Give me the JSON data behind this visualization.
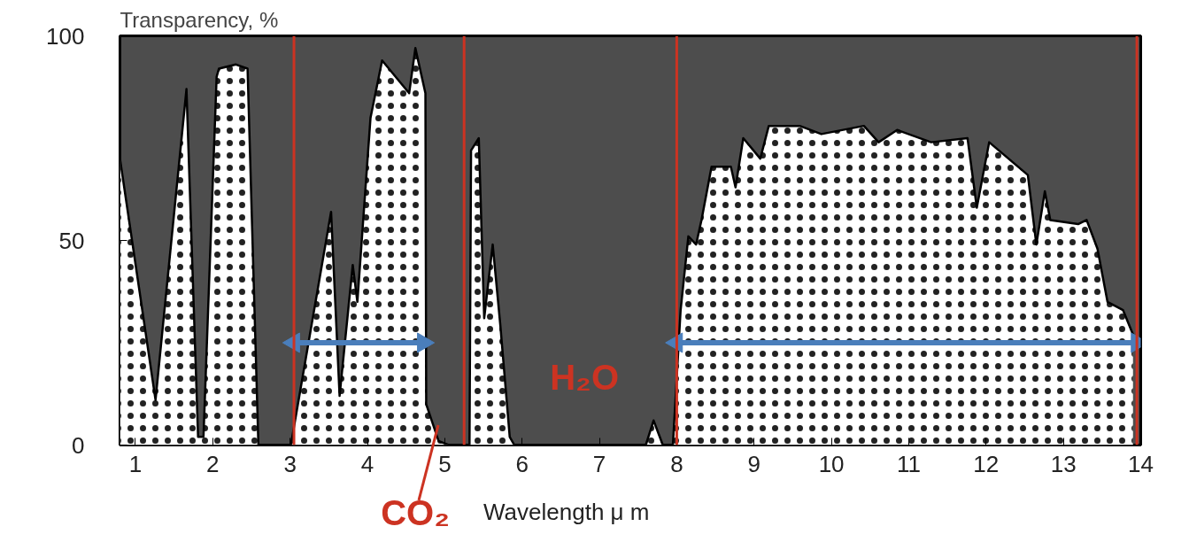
{
  "chart_data": {
    "type": "area",
    "xlabel": "Wavelength μ m",
    "ylabel": "Transparency, %",
    "xlim": [
      0.8,
      14
    ],
    "ylim": [
      0,
      100
    ],
    "xticks": [
      1,
      2,
      3,
      4,
      5,
      6,
      7,
      8,
      9,
      10,
      11,
      12,
      13,
      14
    ],
    "yticks": [
      0,
      50,
      100
    ],
    "grid": false,
    "series": [
      {
        "type": "area",
        "color": "#ffffff",
        "x": [
          0.8,
          1.26,
          1.66,
          1.81,
          1.88,
          2.05,
          2.08,
          2.3,
          2.45,
          2.59,
          3.01,
          3.53,
          3.64,
          3.81,
          3.87,
          4.04,
          4.19,
          4.54,
          4.62,
          4.75,
          4.76,
          4.92,
          5.05,
          5.32,
          5.34,
          5.44,
          5.51,
          5.62,
          5.72,
          5.84,
          5.9,
          7.6,
          7.7,
          7.82,
          7.95,
          8.05,
          8.15,
          8.25,
          8.32,
          8.45,
          8.7,
          8.76,
          8.86,
          9.08,
          9.19,
          9.59,
          9.87,
          10.42,
          10.61,
          10.85,
          11.29,
          11.76,
          11.88,
          12.04,
          12.54,
          12.65,
          12.76,
          12.83,
          13.19,
          13.3,
          13.44,
          13.57,
          13.77,
          13.9
        ],
        "values": [
          70,
          11,
          87,
          2,
          2,
          90,
          92,
          93,
          92,
          0,
          0,
          57,
          12,
          44,
          35,
          80,
          94,
          86,
          97,
          86,
          10,
          1,
          0,
          0,
          72,
          75,
          31,
          49,
          29,
          2,
          0,
          0,
          6,
          0,
          0,
          33,
          51,
          49,
          55,
          68,
          68,
          63,
          75,
          70,
          78,
          78,
          76,
          78,
          74,
          77,
          74,
          75,
          58,
          74,
          66,
          49,
          62,
          55,
          54,
          55,
          48,
          35,
          33,
          27
        ]
      },
      {
        "type": "line",
        "color": "#4a7ebb",
        "marker": "triangle",
        "x": [
          3.05,
          4.72
        ],
        "values": [
          25,
          25
        ]
      },
      {
        "type": "line",
        "color": "#4a7ebb",
        "marker": "triangle",
        "x": [
          8.0,
          13.95
        ],
        "values": [
          25,
          25
        ]
      }
    ],
    "ref_lines": [
      {
        "axis": "x",
        "value": 3.05,
        "color": "#cc3322"
      },
      {
        "axis": "x",
        "value": 5.25,
        "color": "#cc3322"
      },
      {
        "axis": "x",
        "value": 8.0,
        "color": "#cc3322"
      },
      {
        "axis": "x",
        "value": 13.95,
        "color": "#cc3322"
      }
    ],
    "annotations": [
      "H₂O",
      {
        "text": "CO₂",
        "x": 4.87,
        "y": 6
      }
    ]
  }
}
